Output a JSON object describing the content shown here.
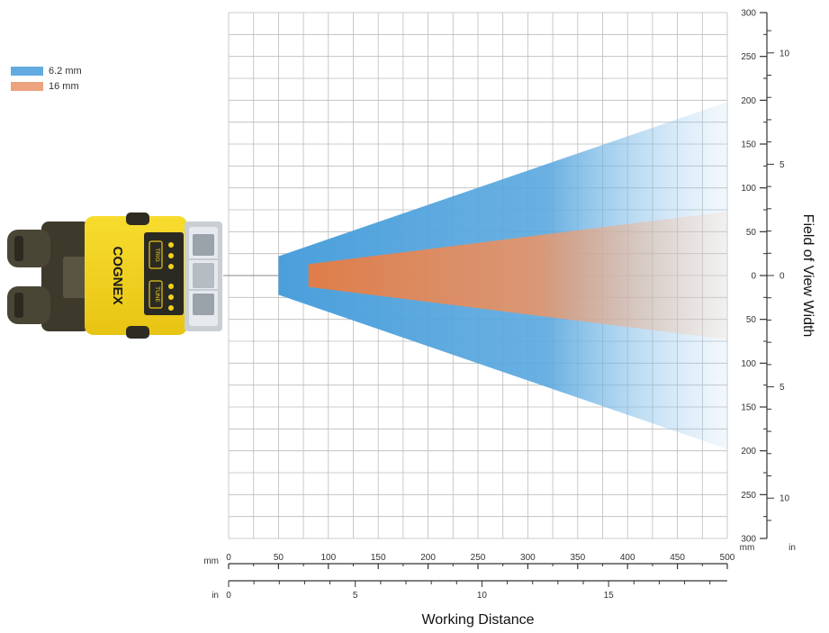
{
  "chart_data": {
    "type": "area",
    "title": "",
    "xlabel": "Working Distance",
    "ylabel": "Field of View Width",
    "x_unit_primary": "mm",
    "x_unit_secondary": "in",
    "y_unit_primary": "mm",
    "y_unit_secondary": "in",
    "xlim": [
      0,
      500
    ],
    "ylim": [
      -300,
      300
    ],
    "grid": true,
    "legend_position": "top-left",
    "x_ticks_mm": [
      "0",
      "50",
      "100",
      "150",
      "200",
      "250",
      "300",
      "350",
      "400",
      "450",
      "500"
    ],
    "x_ticks_in": [
      "0",
      "5",
      "10",
      "15"
    ],
    "y_ticks_mm": [
      "300",
      "250",
      "200",
      "150",
      "100",
      "50",
      "0",
      "50",
      "100",
      "150",
      "200",
      "250",
      "300"
    ],
    "y_ticks_in": [
      "10",
      "5",
      "0",
      "5",
      "10"
    ],
    "series": [
      {
        "name": "6.2 mm",
        "color": "#4a9fdb",
        "points": [
          {
            "distance": 50,
            "fov_half": 22
          },
          {
            "distance": 500,
            "fov_half": 198
          }
        ]
      },
      {
        "name": "16 mm",
        "color": "#e48a5c",
        "points": [
          {
            "distance": 80,
            "fov_half": 13
          },
          {
            "distance": 500,
            "fov_half": 73
          }
        ]
      }
    ]
  },
  "device": {
    "brand": "COGNEX",
    "icon": "cognex-dataman-reader-icon",
    "button_labels": [
      "TRIG",
      "TUNE"
    ]
  },
  "colors": {
    "grid": "#bcbcbc",
    "axis": "#333333",
    "device_body": "#f2d21c"
  }
}
